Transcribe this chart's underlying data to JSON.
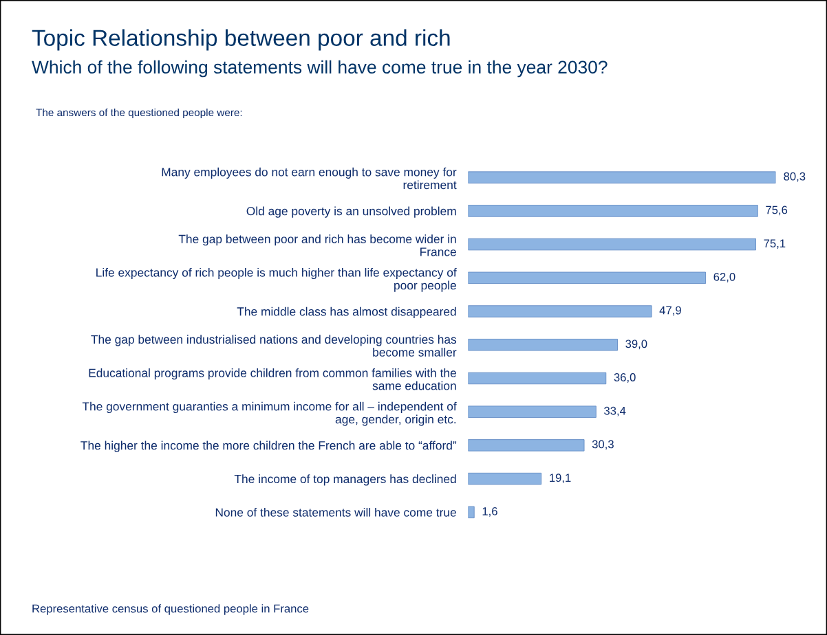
{
  "chart_data": {
    "type": "bar",
    "orientation": "horizontal",
    "title": "Topic Relationship between poor and rich",
    "subtitle": "Which of the following statements will have come true in the year 2030?",
    "annotations": [
      "The answers of the questioned people were:",
      "Representative census of questioned people in France"
    ],
    "categories": [
      "Many employees do not earn enough to save money for\nretirement",
      "Old age poverty is an unsolved problem",
      "The gap between poor and rich has become wider in\nFrance",
      "Life expectancy of rich people is much higher than life expectancy of\npoor people",
      "The middle class has almost disappeared",
      "The gap between industrialised nations and developing countries has\nbecome smaller",
      "Educational programs provide children from common families with the\nsame education",
      "The government guaranties a minimum income for all – independent of\nage, gender, origin etc.",
      "The higher the income the more children the French are able to “afford”",
      "The income of top managers has declined",
      "None of these statements will have come true"
    ],
    "values": [
      80.3,
      75.6,
      75.1,
      62.0,
      47.9,
      39.0,
      36.0,
      33.4,
      30.3,
      19.1,
      1.6
    ],
    "value_labels": [
      "80,3",
      "75,6",
      "75,1",
      "62,0",
      "47,9",
      "39,0",
      "36,0",
      "33,4",
      "30,3",
      "19,1",
      "1,6"
    ],
    "color": "#8db4e2"
  }
}
